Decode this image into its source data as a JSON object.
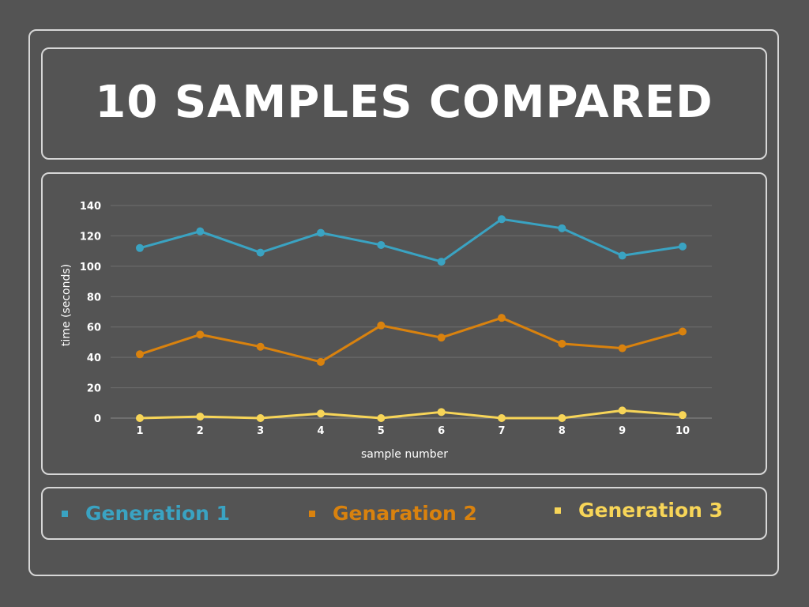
{
  "title": "10 SAMPLES COMPARED",
  "legend": [
    {
      "label": "Generation 1",
      "color": "#3aa3c2"
    },
    {
      "label": "Genaration 2",
      "color": "#d9820e"
    },
    {
      "label": "Generation 3",
      "color": "#f7d558"
    }
  ],
  "chart_data": {
    "type": "line",
    "title": "",
    "xlabel": "sample number",
    "ylabel": "time (seconds)",
    "x": [
      1,
      2,
      3,
      4,
      5,
      6,
      7,
      8,
      9,
      10
    ],
    "ylim": [
      0,
      140
    ],
    "yticks": [
      0,
      20,
      40,
      60,
      80,
      100,
      120,
      140
    ],
    "grid": true,
    "legend_position": "bottom",
    "series": [
      {
        "name": "Generation 1",
        "color": "#3aa3c2",
        "values": [
          112,
          123,
          109,
          122,
          114,
          103,
          131,
          125,
          107,
          113
        ]
      },
      {
        "name": "Genaration 2",
        "color": "#d9820e",
        "values": [
          42,
          55,
          47,
          37,
          61,
          53,
          66,
          49,
          46,
          57
        ]
      },
      {
        "name": "Generation 3",
        "color": "#f7d558",
        "values": [
          0,
          1,
          0,
          3,
          0,
          4,
          0,
          0,
          5,
          2
        ]
      }
    ]
  }
}
